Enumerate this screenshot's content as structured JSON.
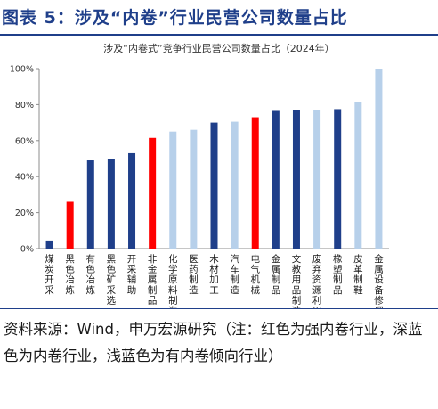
{
  "header": {
    "title": "图表 5：涉及“内卷”行业民营公司数量占比"
  },
  "chart_data": {
    "type": "bar",
    "title": "涉及“内卷式”竞争行业民营公司数量占比（2024年）",
    "xlabel": "",
    "ylabel": "",
    "ylim": [
      0,
      100
    ],
    "yticks": [
      "0%",
      "20%",
      "40%",
      "60%",
      "80%",
      "100%"
    ],
    "grid": false,
    "legend": "none",
    "categories": [
      "煤炭开采",
      "黑色冶炼",
      "有色冶炼",
      "黑色矿采选",
      "开采辅助",
      "非金属制品",
      "化学原料制造",
      "医药制造",
      "木材加工",
      "汽车制造",
      "电气机械",
      "金属制品",
      "文教用品制造",
      "废弃资源利用",
      "橡塑制品",
      "皮革制鞋",
      "金属设备修理"
    ],
    "values": [
      4.5,
      26,
      49,
      50,
      53,
      61.5,
      65,
      66,
      70,
      70.5,
      73,
      76.5,
      77,
      77,
      77.5,
      81.5,
      100
    ],
    "bar_colors": [
      "#1f3f8a",
      "#ff0000",
      "#1f3f8a",
      "#1f3f8a",
      "#1f3f8a",
      "#ff0000",
      "#b7d0ea",
      "#b7d0ea",
      "#1f3f8a",
      "#b7d0ea",
      "#ff0000",
      "#1f3f8a",
      "#1f3f8a",
      "#b7d0ea",
      "#1f3f8a",
      "#b7d0ea",
      "#b7d0ea"
    ]
  },
  "source": {
    "text": "资料来源：Wind，申万宏源研究（注：红色为强内卷行业，深蓝色为内卷行业，浅蓝色为有内卷倾向行业）"
  }
}
